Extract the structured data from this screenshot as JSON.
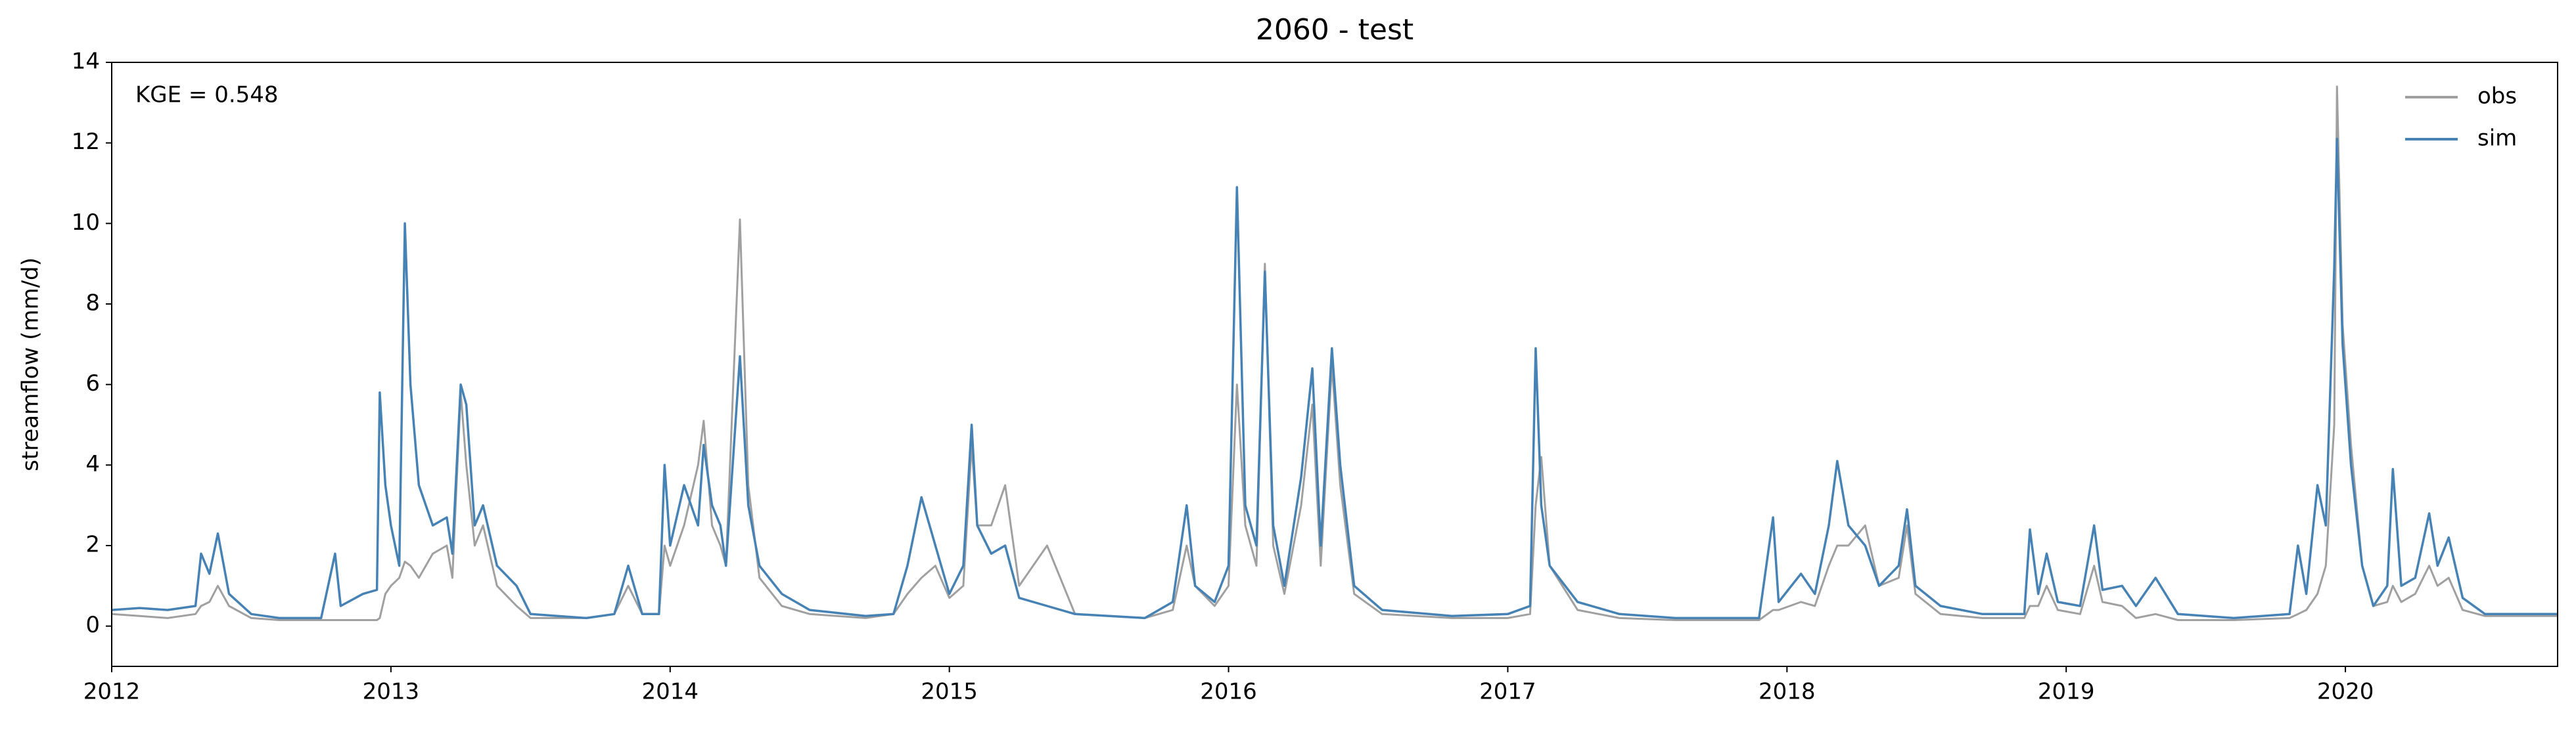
{
  "chart_data": {
    "type": "line",
    "title": "2060 - test",
    "ylabel": "streamflow (mm/d)",
    "annotation": "KGE = 0.548",
    "legend": "upper right",
    "xlim": [
      2012,
      2020.76
    ],
    "xticks": [
      2012,
      2013,
      2014,
      2015,
      2016,
      2017,
      2018,
      2019,
      2020
    ],
    "ylim": [
      -1,
      14
    ],
    "yticks": [
      0,
      2,
      4,
      6,
      8,
      10,
      12,
      14
    ],
    "x": [
      2012.0,
      2012.1,
      2012.2,
      2012.3,
      2012.32,
      2012.35,
      2012.38,
      2012.42,
      2012.5,
      2012.6,
      2012.75,
      2012.8,
      2012.82,
      2012.9,
      2012.95,
      2012.96,
      2012.98,
      2013.0,
      2013.03,
      2013.05,
      2013.07,
      2013.1,
      2013.15,
      2013.2,
      2013.22,
      2013.25,
      2013.27,
      2013.3,
      2013.33,
      2013.38,
      2013.45,
      2013.5,
      2013.7,
      2013.8,
      2013.85,
      2013.9,
      2013.96,
      2013.98,
      2014.0,
      2014.05,
      2014.1,
      2014.12,
      2014.15,
      2014.18,
      2014.2,
      2014.25,
      2014.28,
      2014.32,
      2014.4,
      2014.5,
      2014.7,
      2014.8,
      2014.85,
      2014.9,
      2014.95,
      2015.0,
      2015.05,
      2015.08,
      2015.1,
      2015.15,
      2015.2,
      2015.25,
      2015.35,
      2015.45,
      2015.7,
      2015.8,
      2015.85,
      2015.88,
      2015.95,
      2016.0,
      2016.03,
      2016.06,
      2016.1,
      2016.13,
      2016.16,
      2016.2,
      2016.26,
      2016.3,
      2016.33,
      2016.37,
      2016.4,
      2016.45,
      2016.55,
      2016.8,
      2017.0,
      2017.08,
      2017.1,
      2017.12,
      2017.15,
      2017.25,
      2017.4,
      2017.6,
      2017.9,
      2017.95,
      2017.97,
      2018.05,
      2018.1,
      2018.15,
      2018.18,
      2018.22,
      2018.28,
      2018.33,
      2018.4,
      2018.43,
      2018.46,
      2018.55,
      2018.7,
      2018.85,
      2018.87,
      2018.9,
      2018.93,
      2018.97,
      2019.05,
      2019.1,
      2019.13,
      2019.2,
      2019.25,
      2019.32,
      2019.4,
      2019.6,
      2019.8,
      2019.83,
      2019.86,
      2019.9,
      2019.93,
      2019.96,
      2019.97,
      2019.99,
      2020.02,
      2020.06,
      2020.1,
      2020.15,
      2020.17,
      2020.2,
      2020.25,
      2020.3,
      2020.33,
      2020.37,
      2020.42,
      2020.5,
      2020.76
    ],
    "series": [
      {
        "name": "obs",
        "color": "#a0a0a0",
        "values": [
          0.3,
          0.25,
          0.2,
          0.3,
          0.5,
          0.6,
          1.0,
          0.5,
          0.2,
          0.15,
          0.15,
          0.15,
          0.15,
          0.15,
          0.15,
          0.2,
          0.8,
          1.0,
          1.2,
          1.6,
          1.5,
          1.2,
          1.8,
          2.0,
          1.2,
          5.8,
          4.0,
          2.0,
          2.5,
          1.0,
          0.5,
          0.2,
          0.2,
          0.3,
          1.0,
          0.3,
          0.3,
          2.0,
          1.5,
          2.5,
          4.0,
          5.1,
          2.5,
          2.0,
          1.5,
          10.1,
          3.5,
          1.2,
          0.5,
          0.3,
          0.2,
          0.3,
          0.8,
          1.2,
          1.5,
          0.7,
          1.0,
          4.5,
          2.5,
          2.5,
          3.5,
          1.0,
          2.0,
          0.3,
          0.2,
          0.4,
          2.0,
          1.0,
          0.5,
          1.0,
          6.0,
          2.5,
          1.5,
          9.0,
          2.0,
          0.8,
          3.0,
          5.5,
          1.5,
          6.5,
          3.5,
          0.8,
          0.3,
          0.2,
          0.2,
          0.3,
          3.0,
          4.2,
          1.5,
          0.4,
          0.2,
          0.15,
          0.15,
          0.4,
          0.4,
          0.6,
          0.5,
          1.5,
          2.0,
          2.0,
          2.5,
          1.0,
          1.2,
          2.5,
          0.8,
          0.3,
          0.2,
          0.2,
          0.5,
          0.5,
          1.0,
          0.4,
          0.3,
          1.5,
          0.6,
          0.5,
          0.2,
          0.3,
          0.15,
          0.15,
          0.2,
          0.3,
          0.4,
          0.8,
          1.5,
          5.0,
          13.4,
          7.5,
          4.5,
          1.5,
          0.5,
          0.6,
          1.0,
          0.6,
          0.8,
          1.5,
          1.0,
          1.2,
          0.4,
          0.25,
          0.25
        ]
      },
      {
        "name": "sim",
        "color": "#4682b4",
        "values": [
          0.4,
          0.45,
          0.4,
          0.5,
          1.8,
          1.3,
          2.3,
          0.8,
          0.3,
          0.2,
          0.2,
          1.8,
          0.5,
          0.8,
          0.9,
          5.8,
          3.5,
          2.5,
          1.5,
          10.0,
          6,
          3.5,
          2.5,
          2.7,
          1.8,
          6.0,
          5.5,
          2.5,
          3.0,
          1.5,
          1.0,
          0.3,
          0.2,
          0.3,
          1.5,
          0.3,
          0.3,
          4.0,
          2.0,
          3.5,
          2.5,
          4.5,
          3.0,
          2.5,
          1.5,
          6.7,
          3,
          1.5,
          0.8,
          0.4,
          0.25,
          0.3,
          1.5,
          3.2,
          2.0,
          0.8,
          1.5,
          5.0,
          2.5,
          1.8,
          2.0,
          0.7,
          0.5,
          0.3,
          0.2,
          0.6,
          3.0,
          1.0,
          0.6,
          1.5,
          10.9,
          3,
          2.0,
          8.8,
          2.5,
          1.0,
          3.7,
          6.4,
          2.0,
          6.9,
          4.0,
          1.0,
          0.4,
          0.25,
          0.3,
          0.5,
          6.9,
          3.0,
          1.5,
          0.6,
          0.3,
          0.2,
          0.2,
          2.7,
          0.6,
          1.3,
          0.8,
          2.5,
          4.1,
          2.5,
          2.0,
          1.0,
          1.5,
          2.9,
          1.0,
          0.5,
          0.3,
          0.3,
          2.4,
          0.8,
          1.8,
          0.6,
          0.5,
          2.5,
          0.9,
          1.0,
          0.5,
          1.2,
          0.3,
          0.2,
          0.3,
          2.0,
          0.8,
          3.5,
          2.5,
          8.9,
          12.1,
          7,
          4,
          1.5,
          0.5,
          1.0,
          3.9,
          1.0,
          1.2,
          2.8,
          1.5,
          2.2,
          0.7,
          0.3,
          0.3
        ]
      }
    ]
  }
}
